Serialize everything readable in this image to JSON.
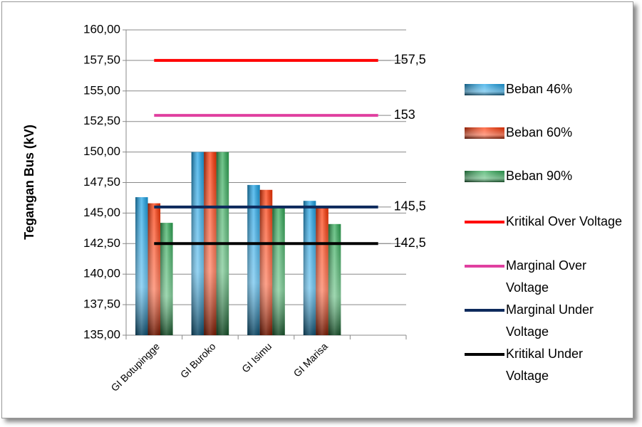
{
  "chart_data": {
    "type": "bar",
    "y_label": "Tegangan Bus (kV)",
    "categories": [
      "GI Botupingge",
      "GI Buroko",
      "GI Isimu",
      "GI Marisa",
      null
    ],
    "series": [
      {
        "name": "Beban 46%",
        "color": "#1aa3e8",
        "values": [
          146.3,
          150,
          147.3,
          146.0,
          null
        ]
      },
      {
        "name": "Beban 60%",
        "color": "#ff3300",
        "values": [
          145.8,
          150,
          146.9,
          145.6,
          null
        ]
      },
      {
        "name": "Beban 90%",
        "color": "#2eaa55",
        "values": [
          144.2,
          150,
          145.6,
          144.1,
          null
        ]
      },
      {
        "name": "Kritikal Over Voltage",
        "type": "line",
        "color": "#ff0000",
        "values": [
          157.5,
          157.5,
          157.5,
          157.5,
          157.5
        ],
        "value_labels": [
          null,
          null,
          null,
          null,
          "157,5"
        ]
      },
      {
        "name": "Marginal Over Voltage",
        "type": "line",
        "color": "#e040a0",
        "values": [
          153,
          153,
          153,
          153,
          153
        ],
        "value_labels": [
          null,
          null,
          null,
          null,
          "153"
        ]
      },
      {
        "name": "Marginal Under Voltage",
        "type": "line",
        "color": "#0d2a5c",
        "values": [
          145.5,
          145.5,
          145.5,
          145.5,
          145.5
        ],
        "value_labels": [
          null,
          null,
          null,
          null,
          "145,5"
        ]
      },
      {
        "name": "Kritikal Under Voltage",
        "type": "line",
        "color": "#000000",
        "values": [
          142.5,
          142.5,
          142.5,
          142.5,
          142.5
        ],
        "value_labels": [
          null,
          null,
          null,
          null,
          "142,5"
        ]
      }
    ],
    "ylim": [
      135,
      160
    ],
    "yticks": [
      {
        "value": 135,
        "label": "135,00"
      },
      {
        "value": 137.5,
        "label": "137,50"
      },
      {
        "value": 140,
        "label": "140,00"
      },
      {
        "value": 142.5,
        "label": "142,50"
      },
      {
        "value": 145,
        "label": "145,00"
      },
      {
        "value": 147.5,
        "label": "147,50"
      },
      {
        "value": 150,
        "label": "150,00"
      },
      {
        "value": 152.5,
        "label": "152,50"
      },
      {
        "value": 155,
        "label": "155,00"
      },
      {
        "value": 157.5,
        "label": "157,50"
      },
      {
        "value": 160,
        "label": "160,00"
      }
    ],
    "grid": true
  }
}
